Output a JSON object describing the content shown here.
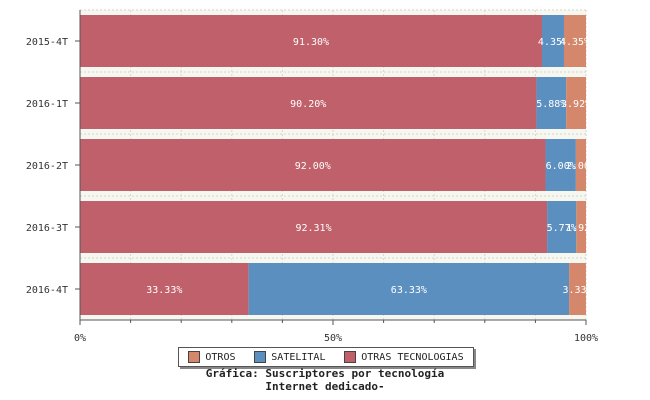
{
  "chart_data": {
    "type": "bar",
    "orientation": "horizontal",
    "stacked": true,
    "normalized": true,
    "categories": [
      "2015-4T",
      "2016-1T",
      "2016-2T",
      "2016-3T",
      "2016-4T"
    ],
    "series": [
      {
        "name": "OTRAS TECNOLOGIAS",
        "color": "#c0606a",
        "values": [
          91.3,
          90.2,
          92.0,
          92.31,
          33.33
        ],
        "labels": [
          "91.30%",
          "90.20%",
          "92.00%",
          "92.31%",
          "33.33%"
        ]
      },
      {
        "name": "SATELITAL",
        "color": "#5b8fc0",
        "values": [
          4.35,
          5.88,
          6.0,
          5.77,
          63.33
        ],
        "labels": [
          "4.35%",
          "5.88%",
          "6.00%",
          "5.77%",
          "63.33%"
        ]
      },
      {
        "name": "OTROS",
        "color": "#d4876a",
        "values": [
          4.35,
          3.92,
          2.0,
          1.92,
          3.33
        ],
        "labels": [
          "4.35%",
          "3.92%",
          "2.00%",
          "1.92%",
          "3.33%"
        ]
      }
    ],
    "x_ticks": [
      "0%",
      "50%",
      "100%"
    ],
    "xlim": [
      0,
      100
    ],
    "grid": true,
    "legend_position": "bottom",
    "legend_order": [
      "OTROS",
      "SATELITAL",
      "OTRAS TECNOLOGIAS"
    ],
    "title_lines": [
      "Gráfica: Suscriptores por tecnología",
      "Internet dedicado-"
    ]
  }
}
